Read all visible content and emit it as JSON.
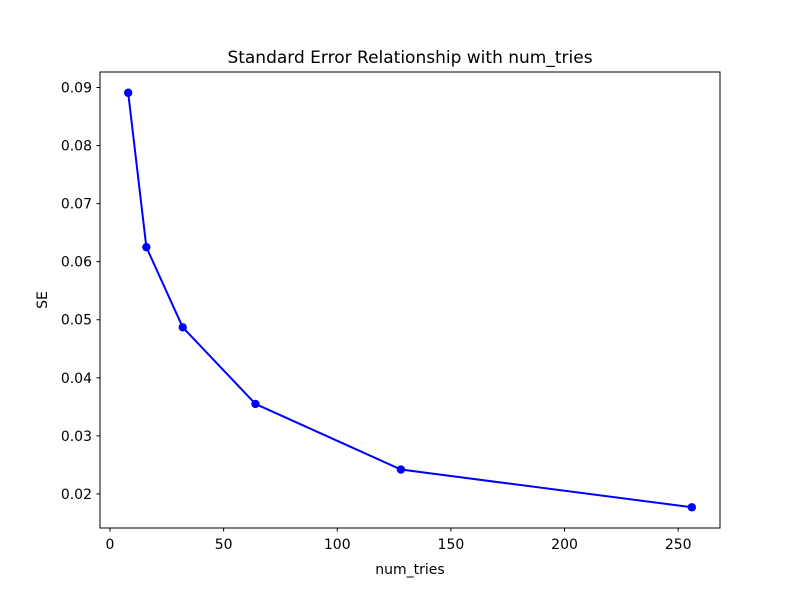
{
  "chart_data": {
    "type": "line",
    "title": "Standard Error Relationship with num_tries",
    "xlabel": "num_tries",
    "ylabel": "SE",
    "x": [
      8,
      16,
      32,
      64,
      128,
      256
    ],
    "series": [
      {
        "name": "SE",
        "values": [
          0.0891,
          0.0625,
          0.0487,
          0.0355,
          0.0242,
          0.0177
        ]
      }
    ],
    "xlim": [
      -4.4,
      268.4
    ],
    "ylim": [
      0.01413,
      0.09267
    ],
    "xticks": {
      "values": [
        0,
        50,
        100,
        150,
        200,
        250
      ],
      "labels": [
        "0",
        "50",
        "100",
        "150",
        "200",
        "250"
      ]
    },
    "yticks": {
      "values": [
        0.02,
        0.03,
        0.04,
        0.05,
        0.06,
        0.07,
        0.08,
        0.09
      ],
      "labels": [
        "0.02",
        "0.03",
        "0.04",
        "0.05",
        "0.06",
        "0.07",
        "0.08",
        "0.09"
      ]
    },
    "grid": false,
    "legend": false,
    "style": {
      "line_color": "#0000ff",
      "marker": "circle",
      "marker_color": "#0000ff",
      "background": "#ffffff",
      "spine_color": "#000000",
      "text_color": "#000000"
    }
  }
}
